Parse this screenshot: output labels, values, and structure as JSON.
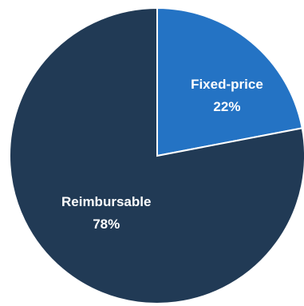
{
  "chart_data": {
    "type": "pie",
    "title": "",
    "categories": [
      "Fixed-price",
      "Reimbursable"
    ],
    "values": [
      22,
      78
    ],
    "value_labels": [
      "22%",
      "78%"
    ],
    "colors": [
      "#2473c4",
      "#213a55"
    ],
    "slice_border_color": "#ffffff",
    "start_angle_deg": 0,
    "direction": "clockwise",
    "legend": "none",
    "labels_position": "inside"
  }
}
